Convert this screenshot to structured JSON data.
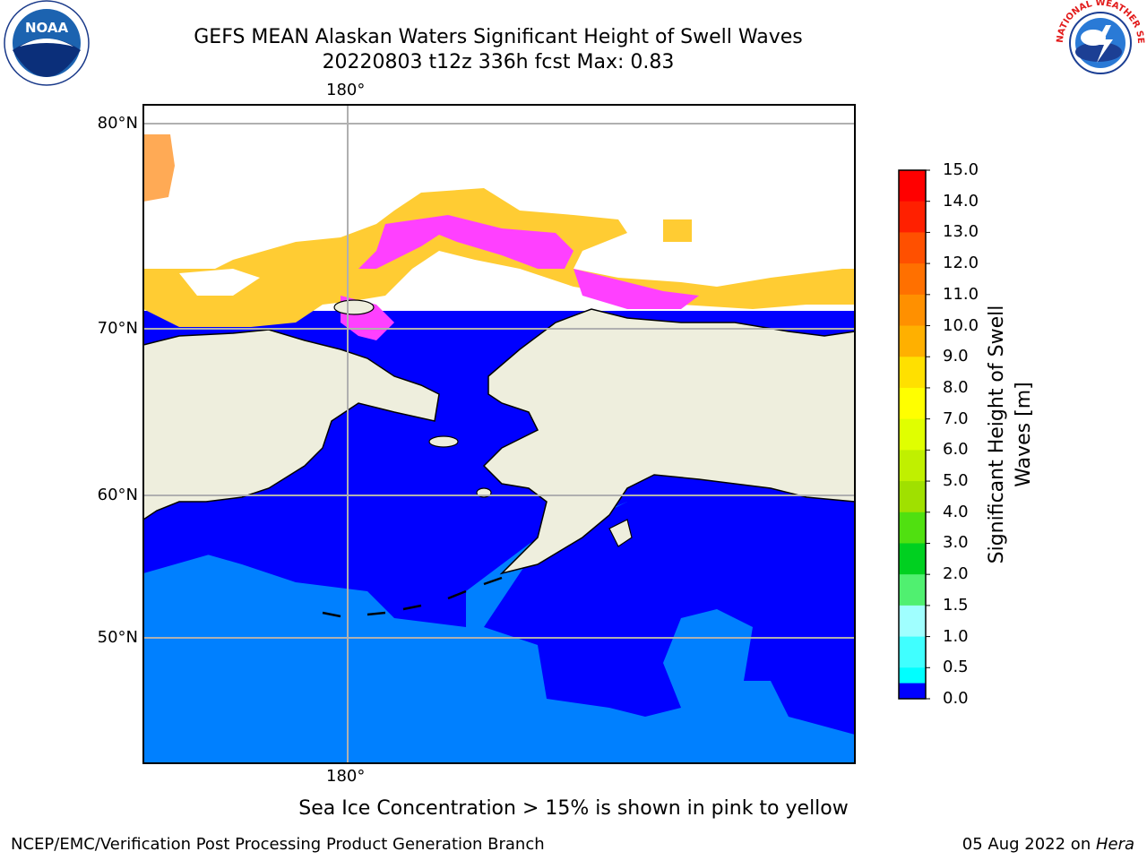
{
  "header": {
    "title_line1": "GEFS MEAN Alaskan Waters Significant Height of Swell Waves",
    "title_line2": "20220803 t12z 336h fcst   Max: 0.83"
  },
  "logos": {
    "left": {
      "name": "noaa-logo",
      "text": "NOAA"
    },
    "right": {
      "name": "national-weather-service-logo",
      "text": "NATIONAL WEATHER SERVICE"
    }
  },
  "map": {
    "lon_label_top": "180°",
    "lon_label_bottom": "180°",
    "lat_labels": [
      "80°N",
      "70°N",
      "60°N",
      "50°N"
    ],
    "colors": {
      "land": "#eeeedd",
      "low_swell": "#0000ff",
      "mid_swell": "#0080ff",
      "ice_pink": "#ff40ff",
      "ice_yellow": "#ffcc33",
      "ice_orange": "#ffaa55"
    }
  },
  "colorbar": {
    "label": "Significant Height of Swell Waves [m]",
    "ticks": [
      "15.0",
      "14.0",
      "13.0",
      "12.0",
      "11.0",
      "10.0",
      "9.0",
      "8.0",
      "7.0",
      "6.0",
      "5.0",
      "4.0",
      "3.0",
      "2.0",
      "1.5",
      "1.0",
      "0.5",
      "0.0"
    ],
    "colors_top_to_bottom": [
      "#ff0000",
      "#ff2000",
      "#ff5000",
      "#ff7000",
      "#ff9000",
      "#ffb000",
      "#ffe000",
      "#ffff00",
      "#e0ff00",
      "#c0f000",
      "#a0e000",
      "#50e010",
      "#00d020",
      "#50f070",
      "#a0ffff",
      "#40ffff",
      "#00ffff",
      "#0080ff",
      "#0000ff"
    ]
  },
  "annotation": "Sea Ice Concentration > 15% is shown in pink to yellow",
  "footer": {
    "left": "NCEP/EMC/Verification Post Processing Product Generation Branch",
    "right_date": "05 Aug 2022 on ",
    "right_host": "Hera"
  }
}
